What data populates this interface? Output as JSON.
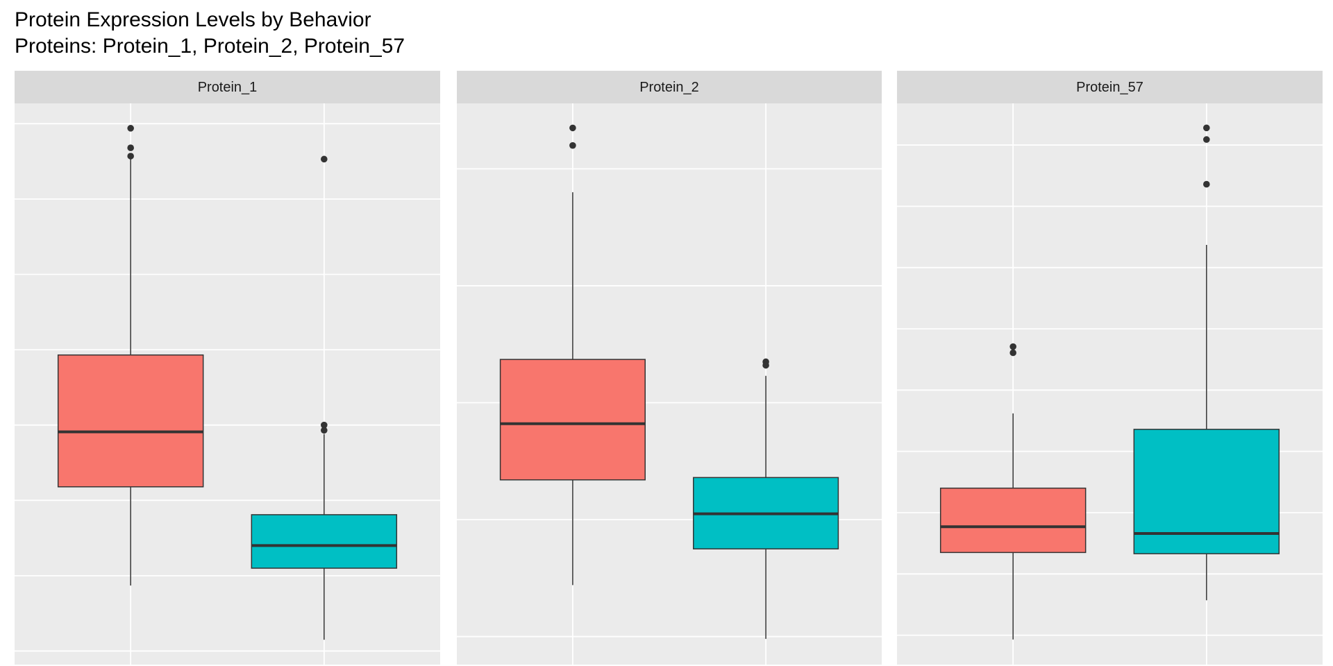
{
  "title": "Protein Expression Levels by Behavior",
  "subtitle": "Proteins:  Protein_1, Protein_2, Protein_57",
  "chart_data": [
    {
      "type": "box",
      "title": "Protein_1",
      "categories": [
        null,
        null
      ],
      "grid": true,
      "ylim": [
        -0.18,
        7.27
      ],
      "yticks": [
        0,
        1,
        2,
        3,
        4,
        5,
        6,
        7
      ],
      "boxes": [
        {
          "color": "#F8766D",
          "low": 0.87,
          "q1": 2.18,
          "median": 2.91,
          "q3": 3.93,
          "high": 6.55,
          "outliers": [
            6.94,
            6.68,
            6.57
          ]
        },
        {
          "color": "#00BFC4",
          "low": 0.15,
          "q1": 1.1,
          "median": 1.4,
          "q3": 1.81,
          "high": 2.88,
          "outliers": [
            3.0,
            2.93,
            6.53
          ]
        }
      ]
    },
    {
      "type": "box",
      "title": "Protein_2",
      "categories": [
        null,
        null
      ],
      "grid": true,
      "ylim": [
        -0.24,
        4.56
      ],
      "yticks": [
        0,
        1,
        2,
        3,
        4
      ],
      "boxes": [
        {
          "color": "#F8766D",
          "low": 0.44,
          "q1": 1.34,
          "median": 1.82,
          "q3": 2.37,
          "high": 3.8,
          "outliers": [
            4.35,
            4.2
          ]
        },
        {
          "color": "#00BFC4",
          "low": -0.02,
          "q1": 0.75,
          "median": 1.05,
          "q3": 1.36,
          "high": 2.23,
          "outliers": [
            2.35,
            2.32
          ]
        }
      ]
    },
    {
      "type": "box",
      "title": "Protein_57",
      "categories": [
        null,
        null
      ],
      "grid": true,
      "ylim": [
        -0.48,
        8.68
      ],
      "yticks": [
        0,
        1,
        2,
        3,
        4,
        5,
        6,
        7,
        8
      ],
      "boxes": [
        {
          "color": "#F8766D",
          "low": -0.07,
          "q1": 1.35,
          "median": 1.77,
          "q3": 2.4,
          "high": 3.62,
          "outliers": [
            4.71,
            4.61
          ]
        },
        {
          "color": "#00BFC4",
          "low": 0.57,
          "q1": 1.33,
          "median": 1.66,
          "q3": 3.36,
          "high": 6.37,
          "outliers": [
            8.28,
            8.09,
            7.36
          ]
        }
      ]
    }
  ]
}
